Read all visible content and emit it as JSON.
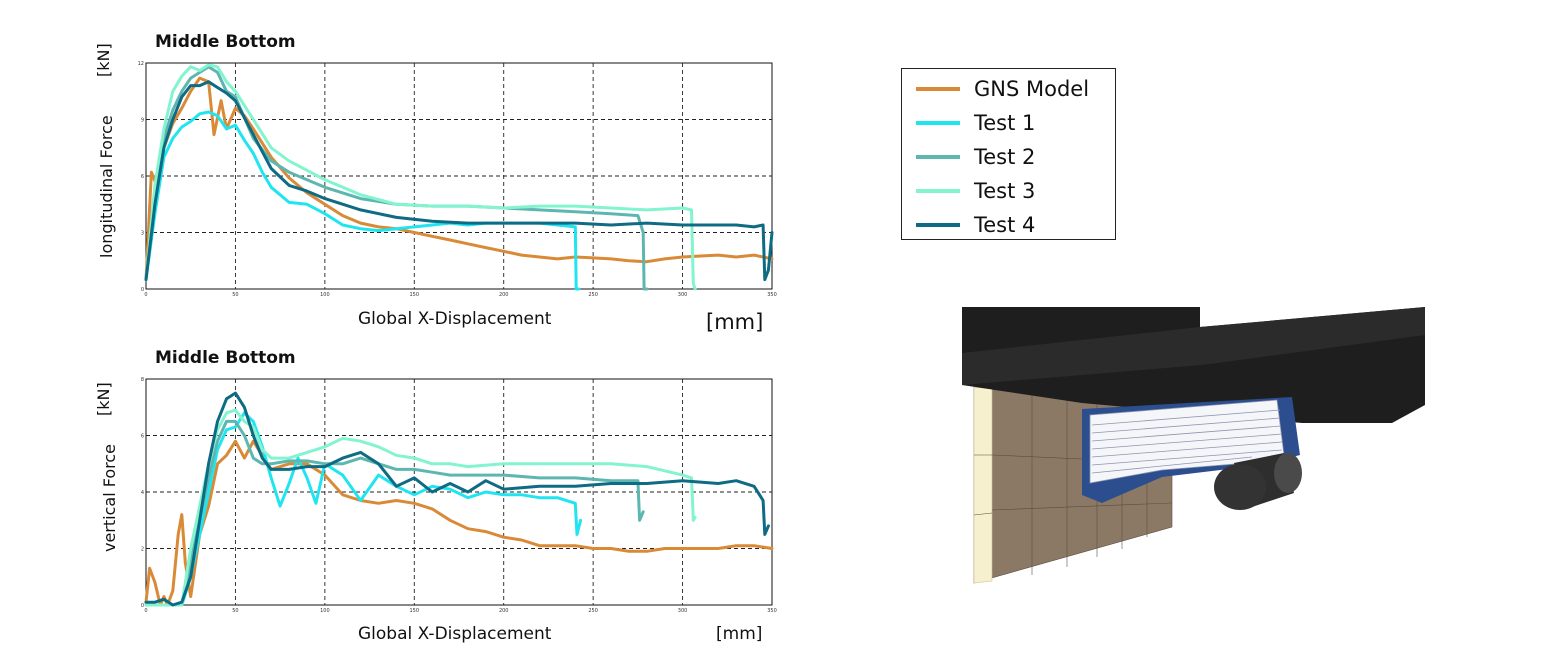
{
  "colors": {
    "GNS Model": "#d98a37",
    "Test 1": "#20e5f0",
    "Test 2": "#5db7b0",
    "Test 3": "#82f4cf",
    "Test 4": "#0f6b83"
  },
  "legend": {
    "items": [
      {
        "label": "GNS Model",
        "color": "#d98a37"
      },
      {
        "label": "Test 1",
        "color": "#20e5f0"
      },
      {
        "label": "Test 2",
        "color": "#5db7b0"
      },
      {
        "label": "Test 3",
        "color": "#82f4cf"
      },
      {
        "label": "Test 4",
        "color": "#0f6b83"
      }
    ]
  },
  "chart_data": [
    {
      "type": "line",
      "title": "Middle Bottom",
      "ylabel": "longitudinal Force",
      "yunit": "[kN]",
      "xlabel": "Global X-Displacement",
      "xunit": "[mm]",
      "xlim": [
        0,
        350
      ],
      "ylim": [
        0,
        12
      ],
      "xticks": [
        0,
        50,
        100,
        150,
        200,
        250,
        300,
        350
      ],
      "yticks": [
        0,
        3,
        6,
        9,
        12
      ],
      "grid": true,
      "series": [
        {
          "name": "GNS Model",
          "x": [
            0,
            3,
            6,
            10,
            15,
            20,
            25,
            30,
            35,
            38,
            42,
            45,
            50,
            55,
            60,
            70,
            80,
            90,
            100,
            110,
            120,
            130,
            140,
            150,
            160,
            170,
            180,
            190,
            200,
            210,
            220,
            230,
            240,
            250,
            260,
            270,
            280,
            290,
            300,
            310,
            320,
            330,
            340,
            350
          ],
          "y": [
            0.5,
            6.2,
            5.5,
            7.5,
            8.8,
            9.6,
            10.5,
            11.2,
            11.0,
            8.2,
            10.0,
            8.5,
            9.6,
            9.2,
            8.5,
            7.0,
            5.9,
            5.1,
            4.5,
            3.9,
            3.5,
            3.3,
            3.2,
            3.0,
            2.8,
            2.6,
            2.4,
            2.2,
            2.0,
            1.8,
            1.7,
            1.6,
            1.7,
            1.65,
            1.6,
            1.5,
            1.45,
            1.6,
            1.7,
            1.75,
            1.8,
            1.7,
            1.8,
            1.6
          ]
        },
        {
          "name": "Test 1",
          "x": [
            0,
            5,
            10,
            15,
            20,
            25,
            30,
            35,
            40,
            45,
            50,
            55,
            60,
            65,
            70,
            80,
            90,
            100,
            110,
            120,
            130,
            140,
            150,
            160,
            170,
            180,
            190,
            200,
            210,
            220,
            230,
            240,
            240.5,
            242
          ],
          "y": [
            0.5,
            4.0,
            7.0,
            8.0,
            8.6,
            8.9,
            9.3,
            9.4,
            9.2,
            8.5,
            8.7,
            7.9,
            7.2,
            6.2,
            5.4,
            4.6,
            4.5,
            4.0,
            3.4,
            3.2,
            3.1,
            3.2,
            3.3,
            3.4,
            3.5,
            3.4,
            3.5,
            3.5,
            3.5,
            3.5,
            3.4,
            3.3,
            0.0,
            0.0
          ]
        },
        {
          "name": "Test 2",
          "x": [
            0,
            5,
            10,
            15,
            20,
            25,
            30,
            35,
            40,
            45,
            50,
            60,
            70,
            80,
            90,
            100,
            120,
            140,
            160,
            180,
            200,
            220,
            240,
            260,
            275,
            278,
            278.5,
            280
          ],
          "y": [
            0.5,
            5.0,
            8.0,
            9.5,
            10.5,
            11.2,
            11.5,
            11.8,
            11.5,
            10.5,
            10.2,
            8.0,
            6.8,
            6.2,
            5.8,
            5.4,
            4.8,
            4.5,
            4.4,
            4.4,
            4.3,
            4.2,
            4.1,
            4.0,
            3.9,
            3.0,
            0.0,
            0.0
          ]
        },
        {
          "name": "Test 3",
          "x": [
            0,
            5,
            10,
            15,
            20,
            25,
            30,
            35,
            40,
            45,
            50,
            60,
            70,
            80,
            90,
            100,
            120,
            140,
            160,
            180,
            200,
            220,
            240,
            260,
            280,
            300,
            305,
            306,
            307
          ],
          "y": [
            0.5,
            5.5,
            8.5,
            10.5,
            11.3,
            11.8,
            11.6,
            11.9,
            11.8,
            11.0,
            10.5,
            9.0,
            7.5,
            6.8,
            6.3,
            5.8,
            5.0,
            4.5,
            4.4,
            4.4,
            4.3,
            4.4,
            4.4,
            4.3,
            4.2,
            4.3,
            4.2,
            0.3,
            0.0
          ]
        },
        {
          "name": "Test 4",
          "x": [
            0,
            5,
            10,
            15,
            20,
            25,
            30,
            35,
            40,
            45,
            50,
            60,
            70,
            80,
            90,
            100,
            120,
            140,
            160,
            180,
            200,
            220,
            240,
            260,
            280,
            300,
            320,
            330,
            340,
            345,
            346,
            348,
            350
          ],
          "y": [
            0.5,
            4.5,
            7.5,
            9.0,
            10.2,
            10.8,
            10.8,
            11.0,
            10.7,
            10.4,
            10.0,
            8.2,
            6.4,
            5.5,
            5.2,
            4.8,
            4.2,
            3.8,
            3.6,
            3.5,
            3.5,
            3.5,
            3.5,
            3.4,
            3.5,
            3.4,
            3.4,
            3.4,
            3.3,
            3.4,
            0.5,
            1.0,
            3.0
          ]
        }
      ]
    },
    {
      "type": "line",
      "title": "Middle Bottom",
      "ylabel": "vertical Force",
      "yunit": "[kN]",
      "xlabel": "Global X-Displacement",
      "xunit": "[mm]",
      "xlim": [
        0,
        350
      ],
      "ylim": [
        0,
        8
      ],
      "xticks": [
        0,
        50,
        100,
        150,
        200,
        250,
        300,
        350
      ],
      "yticks": [
        0,
        2,
        4,
        6,
        8
      ],
      "grid": true,
      "series": [
        {
          "name": "GNS Model",
          "x": [
            0,
            2,
            5,
            8,
            10,
            12,
            15,
            18,
            20,
            22,
            25,
            30,
            35,
            40,
            45,
            50,
            55,
            60,
            70,
            80,
            90,
            100,
            110,
            120,
            130,
            140,
            150,
            160,
            170,
            180,
            190,
            200,
            210,
            220,
            230,
            240,
            250,
            260,
            270,
            280,
            290,
            300,
            310,
            320,
            330,
            340,
            350
          ],
          "y": [
            0.1,
            1.3,
            0.8,
            0.0,
            0.3,
            0.0,
            0.5,
            2.5,
            3.2,
            1.5,
            0.3,
            2.5,
            3.5,
            5.0,
            5.3,
            5.8,
            5.2,
            5.8,
            4.8,
            5.0,
            5.0,
            4.6,
            3.9,
            3.7,
            3.6,
            3.7,
            3.6,
            3.4,
            3.0,
            2.7,
            2.6,
            2.4,
            2.3,
            2.1,
            2.1,
            2.1,
            2.0,
            2.0,
            1.9,
            1.9,
            2.0,
            2.0,
            2.0,
            2.0,
            2.1,
            2.1,
            2.0
          ]
        },
        {
          "name": "Test 1",
          "x": [
            0,
            10,
            20,
            25,
            30,
            35,
            40,
            45,
            50,
            55,
            60,
            65,
            70,
            75,
            80,
            85,
            90,
            95,
            100,
            110,
            120,
            130,
            140,
            150,
            160,
            170,
            180,
            190,
            200,
            210,
            220,
            230,
            240,
            241,
            243
          ],
          "y": [
            0.0,
            0.0,
            0.0,
            1.0,
            2.5,
            4.0,
            5.5,
            6.2,
            6.3,
            6.8,
            6.5,
            5.6,
            4.5,
            3.5,
            4.3,
            5.2,
            4.5,
            3.6,
            5.0,
            4.6,
            3.7,
            4.6,
            4.2,
            3.9,
            4.2,
            4.1,
            3.8,
            4.0,
            3.9,
            3.9,
            3.8,
            3.8,
            3.6,
            2.5,
            3.0
          ]
        },
        {
          "name": "Test 2",
          "x": [
            0,
            10,
            20,
            25,
            30,
            35,
            40,
            45,
            50,
            55,
            60,
            65,
            70,
            80,
            90,
            100,
            110,
            120,
            130,
            140,
            150,
            160,
            170,
            180,
            200,
            220,
            240,
            260,
            270,
            275,
            276,
            278
          ],
          "y": [
            0.0,
            0.0,
            0.0,
            1.5,
            3.0,
            4.5,
            5.8,
            6.5,
            6.5,
            6.0,
            5.2,
            5.0,
            5.0,
            5.1,
            5.1,
            5.0,
            5.0,
            5.2,
            5.0,
            4.8,
            4.8,
            4.7,
            4.6,
            4.6,
            4.6,
            4.5,
            4.5,
            4.4,
            4.4,
            4.4,
            3.0,
            3.3
          ]
        },
        {
          "name": "Test 3",
          "x": [
            0,
            10,
            20,
            25,
            30,
            35,
            40,
            45,
            50,
            55,
            60,
            65,
            70,
            80,
            90,
            100,
            110,
            120,
            130,
            140,
            150,
            160,
            170,
            180,
            200,
            220,
            240,
            260,
            280,
            300,
            305,
            306,
            307
          ],
          "y": [
            0.0,
            0.0,
            0.0,
            2.0,
            3.5,
            5.0,
            6.2,
            6.8,
            6.9,
            6.5,
            6.3,
            5.5,
            5.2,
            5.2,
            5.4,
            5.6,
            5.9,
            5.8,
            5.6,
            5.3,
            5.2,
            5.0,
            5.0,
            4.9,
            5.0,
            5.0,
            5.0,
            5.0,
            4.9,
            4.6,
            4.5,
            3.0,
            3.1
          ]
        },
        {
          "name": "Test 4",
          "x": [
            0,
            5,
            10,
            15,
            20,
            25,
            30,
            35,
            40,
            45,
            50,
            55,
            60,
            65,
            70,
            80,
            90,
            100,
            110,
            120,
            130,
            140,
            150,
            160,
            170,
            180,
            190,
            200,
            220,
            240,
            260,
            280,
            300,
            320,
            330,
            340,
            345,
            346,
            348
          ],
          "y": [
            0.1,
            0.1,
            0.2,
            0.0,
            0.1,
            1.0,
            3.0,
            5.0,
            6.5,
            7.3,
            7.5,
            7.0,
            6.0,
            5.2,
            4.8,
            4.8,
            4.9,
            4.9,
            5.2,
            5.4,
            5.0,
            4.2,
            4.5,
            4.0,
            4.3,
            4.0,
            4.4,
            4.1,
            4.2,
            4.2,
            4.3,
            4.3,
            4.4,
            4.3,
            4.4,
            4.2,
            3.7,
            2.5,
            2.8
          ]
        }
      ]
    }
  ],
  "labels": {
    "chart1": {
      "title": "Middle Bottom",
      "ylabel": "longitudinal Force",
      "yunit": "[kN]",
      "xlabel": "Global X-Displacement",
      "xunit": "[mm]"
    },
    "chart2": {
      "title": "Middle Bottom",
      "ylabel": "vertical Force",
      "yunit": "[kN]",
      "xlabel": "Global X-Displacement",
      "xunit": "[mm]"
    }
  }
}
